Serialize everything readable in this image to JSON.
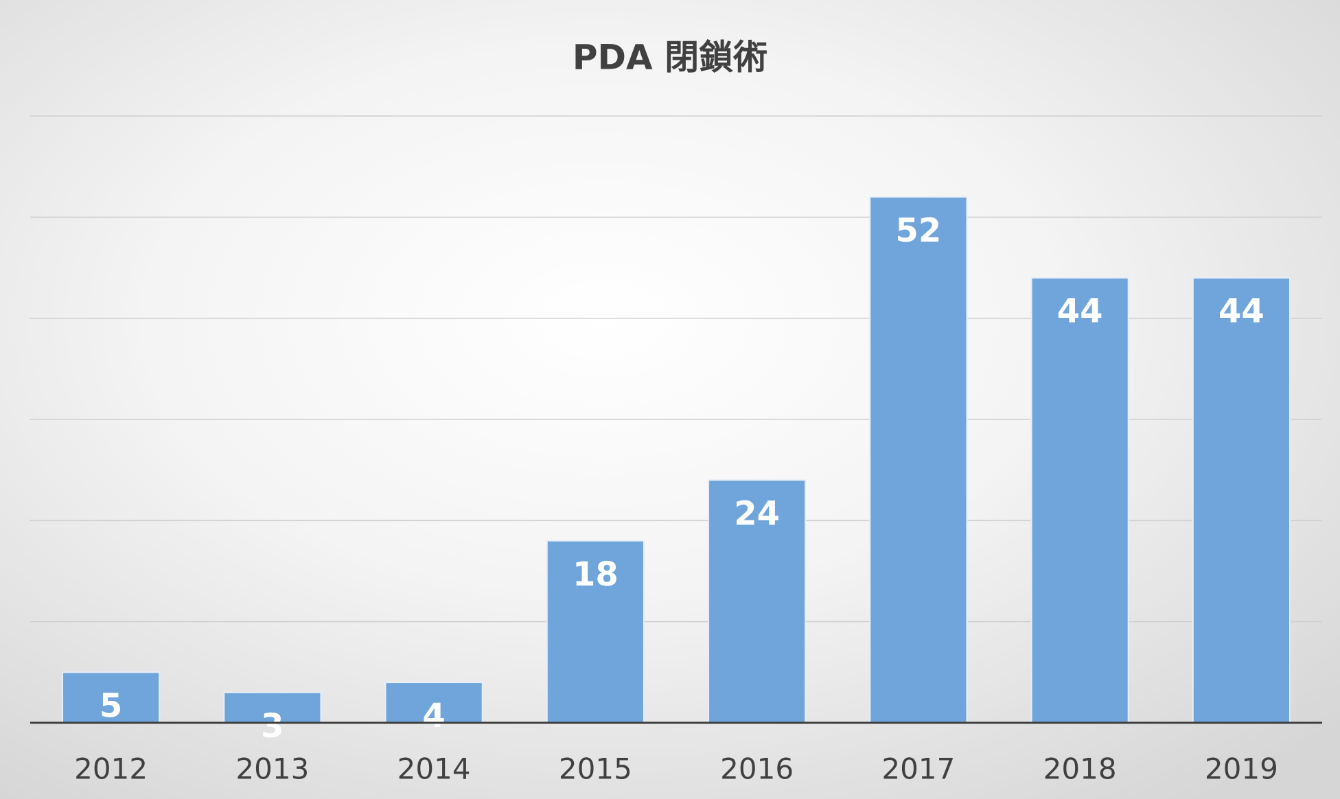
{
  "chart_data": {
    "type": "bar",
    "title": "PDA 閉鎖術",
    "categories": [
      "2012",
      "2013",
      "2014",
      "2015",
      "2016",
      "2017",
      "2018",
      "2019"
    ],
    "values": [
      5,
      3,
      4,
      18,
      24,
      52,
      44,
      44
    ],
    "color": "#6fa5da",
    "ylim": [
      0,
      60
    ],
    "yticks": [
      0,
      10,
      20,
      30,
      40,
      50,
      60
    ],
    "grid": true
  }
}
